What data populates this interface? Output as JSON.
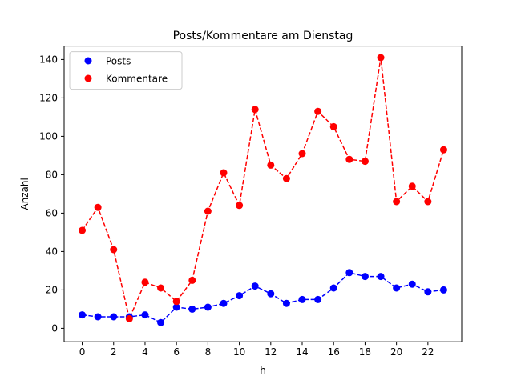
{
  "chart_data": {
    "type": "line",
    "title": "Posts/Kommentare am Dienstag",
    "xlabel": "h",
    "ylabel": "Anzahl",
    "xlim": [
      -1.15,
      24.15
    ],
    "ylim": [
      -7,
      147
    ],
    "xticks": [
      0,
      2,
      4,
      6,
      8,
      10,
      12,
      14,
      16,
      18,
      20,
      22
    ],
    "yticks": [
      0,
      20,
      40,
      60,
      80,
      100,
      120,
      140
    ],
    "grid": false,
    "legend_position": "top-left",
    "x": [
      0,
      1,
      2,
      3,
      4,
      5,
      6,
      7,
      8,
      9,
      10,
      11,
      12,
      13,
      14,
      15,
      16,
      17,
      18,
      19,
      20,
      21,
      22,
      23
    ],
    "series": [
      {
        "name": "Posts",
        "color": "#0000ff",
        "values": [
          7,
          6,
          6,
          6,
          7,
          3,
          11,
          10,
          11,
          13,
          17,
          22,
          18,
          13,
          15,
          15,
          21,
          29,
          27,
          27,
          21,
          23,
          19,
          20
        ]
      },
      {
        "name": "Kommentare",
        "color": "#ff0000",
        "values": [
          51,
          63,
          41,
          5,
          24,
          21,
          14,
          25,
          61,
          81,
          64,
          114,
          85,
          78,
          91,
          113,
          105,
          88,
          87,
          141,
          66,
          74,
          66,
          93
        ]
      }
    ]
  }
}
